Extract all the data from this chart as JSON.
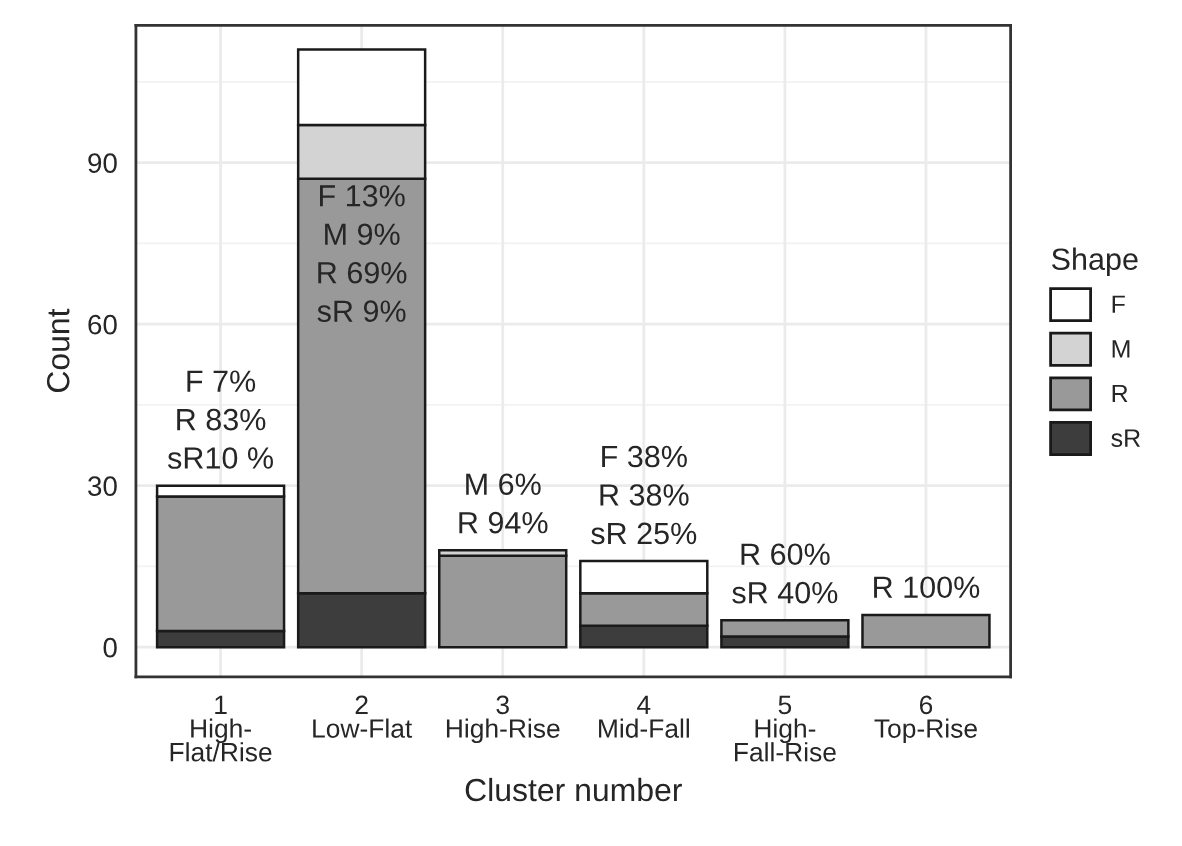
{
  "chart_data": {
    "type": "bar",
    "stacked": true,
    "xlabel": "Cluster number",
    "ylabel": "Count",
    "legend_title": "Shape",
    "categories": [
      "1\nHigh-\nFlat/Rise",
      "2\nLow-Flat",
      "3\nHigh-Rise",
      "4\nMid-Fall",
      "5\nHigh-\nFall-Rise",
      "6\nTop-Rise"
    ],
    "series": [
      {
        "name": "sR",
        "color": "#3d3d3d",
        "values": [
          3,
          10,
          0,
          4,
          2,
          0
        ]
      },
      {
        "name": "R",
        "color": "#999999",
        "values": [
          25,
          77,
          17,
          6,
          3,
          6
        ]
      },
      {
        "name": "M",
        "color": "#d3d3d3",
        "values": [
          0,
          10,
          1,
          0,
          0,
          0
        ]
      },
      {
        "name": "F",
        "color": "#ffffff",
        "values": [
          2,
          14,
          0,
          6,
          0,
          0
        ]
      }
    ],
    "ylim": [
      -5.5,
      115.5
    ],
    "yticks": [
      0,
      30,
      60,
      90
    ],
    "grid": true,
    "legend": "right",
    "annotations": [
      "F 7%\nR 83%\nsR10 %",
      "F 13%\nM 9%\nR 69%\nsR 9%",
      "M 6%\nR 94%",
      "F 38%\nR 38%\nsR 25%",
      "R 60%\nsR 40%",
      "R 100%"
    ]
  }
}
